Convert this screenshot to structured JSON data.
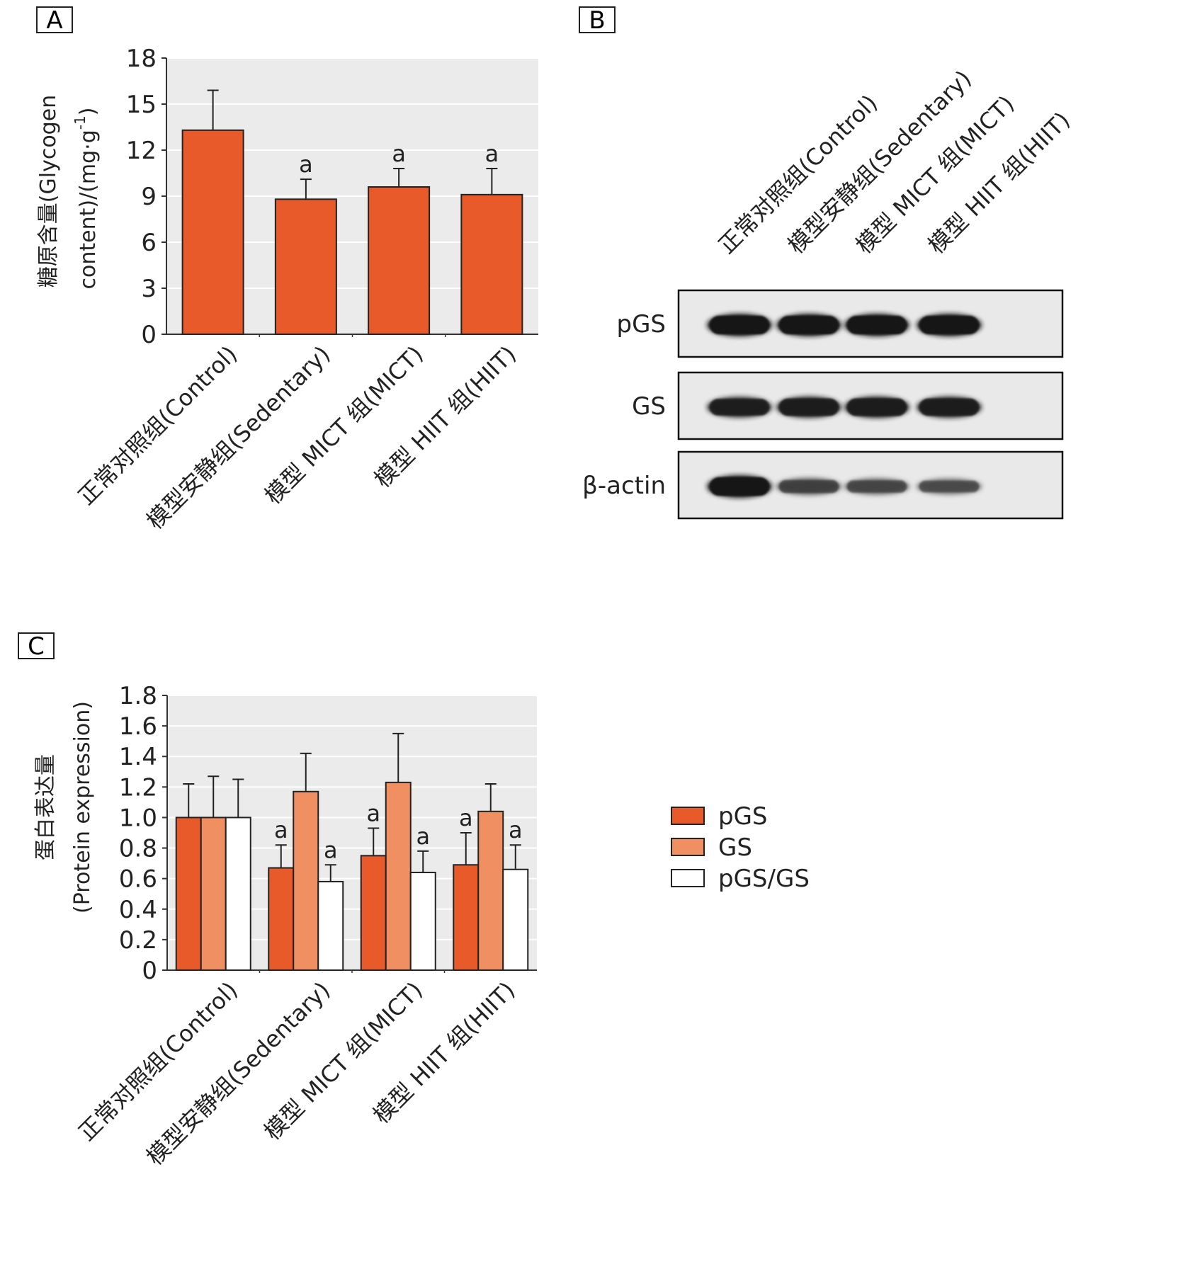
{
  "colors": {
    "pGS": "#e95a2b",
    "GS": "#f08f61",
    "ratio": "#ffffff",
    "plot_bg": "#ebebeb",
    "grid": "#ffffff",
    "axis": "#333333"
  },
  "panels": {
    "A": "A",
    "B": "B",
    "C": "C"
  },
  "blot": {
    "lanes": [
      "正常对照组(Control)",
      "模型安静组(Sedentary)",
      "模型 MICT 组(MICT)",
      "模型 HIIT 组(HIIT)"
    ],
    "rows": [
      {
        "label": "pGS",
        "intensity": [
          1.0,
          1.0,
          1.0,
          1.0
        ]
      },
      {
        "label": "GS",
        "intensity": [
          0.85,
          0.9,
          0.92,
          0.9
        ]
      },
      {
        "label": "β-actin",
        "intensity": [
          1.0,
          0.55,
          0.5,
          0.45
        ]
      }
    ]
  },
  "chart_data": [
    {
      "id": "A",
      "type": "bar",
      "categories": [
        "正常对照组(Control)",
        "模型安静组(Sedentary)",
        "模型 MICT 组(MICT)",
        "模型 HIIT 组(HIIT)"
      ],
      "values": [
        13.3,
        8.8,
        9.6,
        9.1
      ],
      "errors": [
        2.6,
        1.3,
        1.2,
        1.7
      ],
      "significance": [
        "",
        "a",
        "a",
        "a"
      ],
      "ylabel_line1": "糖原含量(Glycogen",
      "ylabel_line2": "content)/(mg·g",
      "ylabel_sup": "-1",
      "ylabel_end": ")",
      "ylim": [
        0,
        18
      ],
      "yticks": [
        "0",
        "3",
        "6",
        "9",
        "12",
        "15",
        "18"
      ],
      "grid": true
    },
    {
      "id": "C",
      "type": "bar",
      "categories": [
        "正常对照组(Control)",
        "模型安静组(Sedentary)",
        "模型 MICT 组(MICT)",
        "模型 HIIT 组(HIIT)"
      ],
      "series": [
        {
          "name": "pGS",
          "values": [
            1.0,
            0.67,
            0.75,
            0.69
          ],
          "errors": [
            0.22,
            0.15,
            0.18,
            0.21
          ],
          "significance": [
            "",
            "a",
            "a",
            "a"
          ]
        },
        {
          "name": "GS",
          "values": [
            1.0,
            1.17,
            1.23,
            1.04
          ],
          "errors": [
            0.27,
            0.25,
            0.32,
            0.18
          ],
          "significance": [
            "",
            "",
            "",
            ""
          ]
        },
        {
          "name": "pGS/GS",
          "values": [
            1.0,
            0.58,
            0.64,
            0.66
          ],
          "errors": [
            0.25,
            0.11,
            0.14,
            0.16
          ],
          "significance": [
            "",
            "a",
            "a",
            "a"
          ]
        }
      ],
      "ylabel_line1": "蛋白表达量",
      "ylabel_line2": "(Protein expression)",
      "ylim": [
        0,
        1.8
      ],
      "yticks": [
        "0",
        "0.2",
        "0.4",
        "0.6",
        "0.8",
        "1.0",
        "1.2",
        "1.4",
        "1.6",
        "1.8"
      ],
      "grid": true,
      "legend_position": "right"
    }
  ]
}
